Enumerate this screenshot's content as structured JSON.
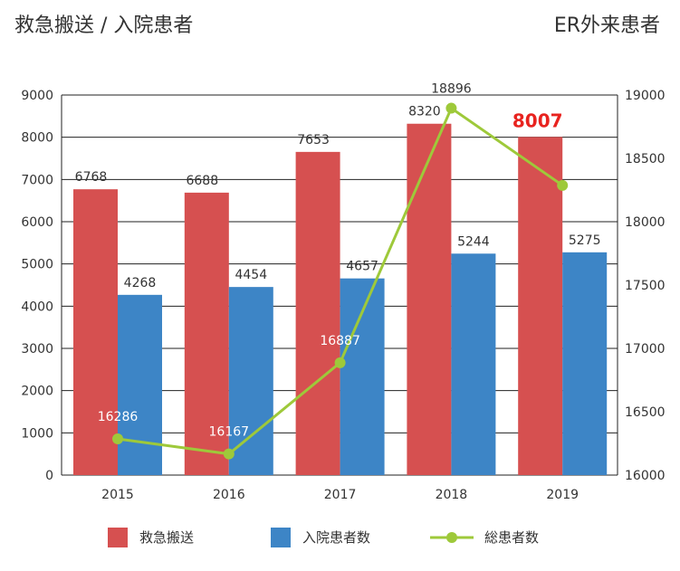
{
  "header": {
    "left_title": "救急搬送 / 入院患者",
    "right_title": "ER外来患者"
  },
  "chart_data": {
    "type": "bar",
    "categories": [
      "2015",
      "2016",
      "2017",
      "2018",
      "2019"
    ],
    "series": [
      {
        "name": "救急搬送",
        "axis": "left",
        "type": "bar",
        "color": "#d65050",
        "values": [
          6768,
          6688,
          7653,
          8320,
          8007
        ],
        "labels": [
          "6768",
          "6688",
          "7653",
          "8320",
          "8007"
        ]
      },
      {
        "name": "入院患者数",
        "axis": "left",
        "type": "bar",
        "color": "#3d85c6",
        "values": [
          4268,
          4454,
          4657,
          5244,
          5275
        ],
        "labels": [
          "4268",
          "4454",
          "4657",
          "5244",
          "5275"
        ]
      },
      {
        "name": "総患者数",
        "axis": "right",
        "type": "line",
        "color": "#9ec93a",
        "values": [
          16286,
          16167,
          16887,
          18896,
          18287
        ],
        "labels": [
          "16286",
          "16167",
          "16887",
          "18896",
          "18287"
        ]
      }
    ],
    "highlight": {
      "series": 0,
      "index": 4,
      "color": "#e8231f"
    },
    "y_left": {
      "min": 0,
      "max": 9000,
      "ticks": [
        "0",
        "1000",
        "2000",
        "3000",
        "4000",
        "5000",
        "6000",
        "7000",
        "8000",
        "9000"
      ]
    },
    "y_right": {
      "min": 16000,
      "max": 19000,
      "ticks": [
        "16000",
        "16500",
        "17000",
        "17500",
        "18000",
        "18500",
        "19000"
      ]
    },
    "grid": true,
    "legend_position": "bottom"
  }
}
